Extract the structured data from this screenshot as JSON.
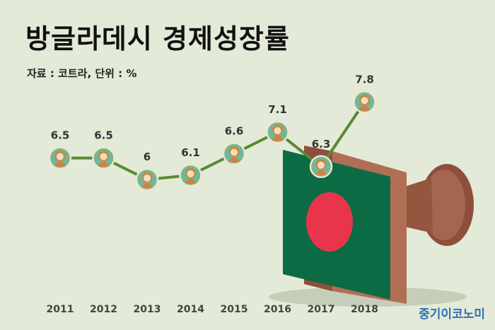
{
  "title": "방글라데시 경제성장률",
  "source_note": "자료 : 코트라, 단위 : %",
  "brand": "중기이코노미",
  "colors": {
    "background": "#e3ead8",
    "line": "#5a8a32",
    "marker_fill": "#6fb79a",
    "marker_stroke": "#f0e6c8",
    "stamp_wood": "#a0614a",
    "flag_green": "#0a6b45",
    "flag_red": "#e8354b"
  },
  "chart_data": {
    "type": "line",
    "categories": [
      "2011",
      "2012",
      "2013",
      "2014",
      "2015",
      "2016",
      "2017",
      "2018"
    ],
    "values": [
      6.5,
      6.5,
      6,
      6.1,
      6.6,
      7.1,
      6.3,
      7.8
    ],
    "value_labels": [
      "6.5",
      "6.5",
      "6",
      "6.1",
      "6.6",
      "7.1",
      "6.3",
      "7.8"
    ],
    "unit": "%",
    "ylim": [
      5.0,
      8.2
    ],
    "grid": false,
    "legend": "none",
    "marker_icon": "smiling-figure-icon"
  },
  "illustration": "bangladesh-flag-stamp-icon"
}
